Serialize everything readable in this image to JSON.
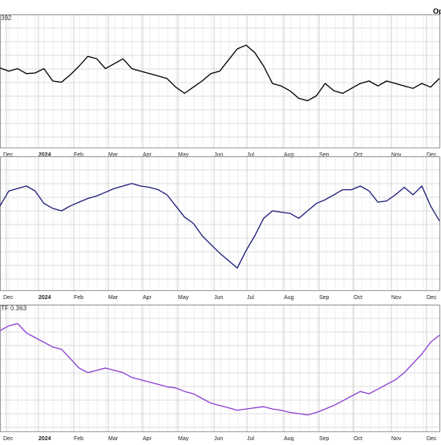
{
  "corner_label": "Op",
  "chart_data": [
    {
      "type": "line",
      "label_prefix": "392",
      "color": "#000000",
      "grid": true,
      "months": [
        "Dec",
        "2024",
        "Feb",
        "Mar",
        "Apr",
        "May",
        "Jun",
        "Jul",
        "Aug",
        "Sep",
        "Oct",
        "Nov",
        "Dec"
      ],
      "x": [
        0,
        2,
        4,
        6,
        8,
        10,
        12,
        14,
        16,
        18,
        20,
        22,
        24,
        26,
        28,
        30,
        32,
        34,
        36,
        38,
        40,
        42,
        44,
        46,
        48,
        50,
        52,
        54,
        56,
        58,
        60,
        62,
        64,
        66,
        68,
        70,
        72,
        74,
        76,
        78,
        80,
        82,
        84,
        86,
        88,
        90,
        92,
        94,
        96,
        98,
        100
      ],
      "values": [
        60.5,
        58.0,
        60.0,
        56.0,
        56.5,
        60.0,
        50.0,
        49.0,
        55.0,
        62.0,
        70.0,
        68.0,
        60.0,
        64.0,
        68.0,
        60.0,
        58.0,
        56.0,
        54.0,
        52.0,
        45.0,
        40.0,
        45.0,
        50.0,
        56.0,
        58.0,
        67.0,
        76.0,
        79.0,
        73.0,
        62.0,
        48.0,
        46.0,
        42.0,
        36.0,
        34.0,
        38.0,
        48.0,
        42.0,
        40.0,
        44.0,
        48.0,
        50.0,
        46.0,
        50.0,
        48.0,
        46.0,
        44.0,
        48.0,
        45.0,
        52.0
      ]
    },
    {
      "type": "line",
      "color": "#1c1c7a",
      "grid": true,
      "months": [
        "Dec",
        "2024",
        "Feb",
        "Mar",
        "Apr",
        "May",
        "Jun",
        "Jul",
        "Aug",
        "Sep",
        "Oct",
        "Nov",
        "Dec"
      ],
      "x": [
        0,
        2,
        4,
        6,
        8,
        10,
        12,
        14,
        16,
        18,
        20,
        22,
        24,
        26,
        28,
        30,
        32,
        34,
        36,
        38,
        40,
        42,
        44,
        46,
        48,
        50,
        52,
        54,
        56,
        58,
        60,
        62,
        64,
        66,
        68,
        70,
        72,
        74,
        76,
        78,
        80,
        82,
        84,
        86,
        88,
        90,
        92,
        94,
        96,
        98,
        100
      ],
      "values": [
        64.0,
        76.0,
        78.0,
        80.0,
        76.0,
        66.0,
        62.0,
        60.0,
        64.0,
        67.0,
        70.0,
        72.0,
        75.0,
        78.0,
        80.0,
        82.0,
        80.0,
        79.0,
        77.0,
        73.0,
        64.0,
        55.0,
        50.0,
        40.0,
        33.0,
        26.0,
        20.0,
        14.0,
        28.0,
        40.0,
        54.0,
        60.0,
        59.0,
        58.0,
        54.0,
        60.0,
        66.0,
        69.0,
        73.0,
        77.0,
        77.0,
        80.0,
        76.0,
        67.0,
        68.0,
        73.0,
        79.0,
        73.0,
        80.0,
        64.0,
        52.0
      ]
    },
    {
      "type": "line",
      "label_prefix": "TF 0.363",
      "color": "#8b3fd4",
      "grid": true,
      "months": [
        "Dec",
        "2024",
        "Feb",
        "Mar",
        "Apr",
        "May",
        "Jun",
        "Jul",
        "Aug",
        "Sep",
        "Oct",
        "Nov",
        "Dec"
      ],
      "x": [
        0,
        2,
        4,
        6,
        8,
        10,
        12,
        14,
        16,
        18,
        20,
        22,
        24,
        26,
        28,
        30,
        32,
        34,
        36,
        38,
        40,
        42,
        44,
        46,
        48,
        50,
        52,
        54,
        56,
        58,
        60,
        62,
        64,
        66,
        68,
        70,
        72,
        74,
        76,
        78,
        80,
        82,
        84,
        86,
        88,
        90,
        92,
        94,
        96,
        98,
        100
      ],
      "values": [
        82.0,
        86.0,
        88.0,
        80.0,
        76.0,
        72.0,
        68.0,
        66.0,
        58.0,
        50.0,
        46.0,
        48.0,
        50.0,
        48.0,
        46.0,
        42.0,
        40.0,
        38.0,
        36.0,
        34.0,
        33.0,
        30.0,
        28.0,
        24.0,
        20.0,
        18.0,
        16.0,
        14.0,
        15.0,
        16.0,
        17.0,
        15.0,
        14.0,
        12.0,
        11.0,
        10.0,
        12.0,
        15.0,
        18.0,
        22.0,
        26.0,
        30.0,
        28.0,
        32.0,
        36.0,
        40.0,
        46.0,
        54.0,
        62.0,
        72.0,
        78.0
      ]
    }
  ]
}
